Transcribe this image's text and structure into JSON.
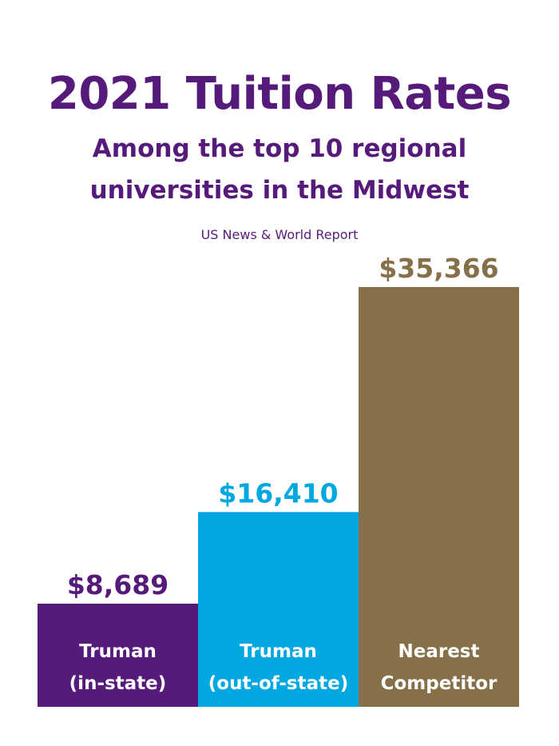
{
  "colors": {
    "title": "#561A7A",
    "purple": "#561A7A",
    "blue": "#00A7E1",
    "brown": "#86704A",
    "label_text": "#FFFFFF"
  },
  "header": {
    "title": "2021 Tuition Rates",
    "subtitle": "Among the top 10 regional\nuniversities in the Midwest",
    "source": "US News & World Report"
  },
  "chart_data": {
    "type": "bar",
    "title": "2021 Tuition Rates",
    "subtitle": "Among the top 10 regional universities in the Midwest",
    "xlabel": "",
    "ylabel": "",
    "grid": false,
    "categories": [
      [
        "Truman",
        "(in-state)"
      ],
      [
        "Truman",
        "(out-of-state)"
      ],
      [
        "Nearest",
        "Competitor"
      ]
    ],
    "values": [
      8689,
      16410,
      35366
    ],
    "value_labels": [
      "$8,689",
      "$16,410",
      "$35,366"
    ],
    "bar_colors": [
      "#561A7A",
      "#00A7E1",
      "#86704A"
    ],
    "ylim": [
      0,
      35366
    ]
  }
}
